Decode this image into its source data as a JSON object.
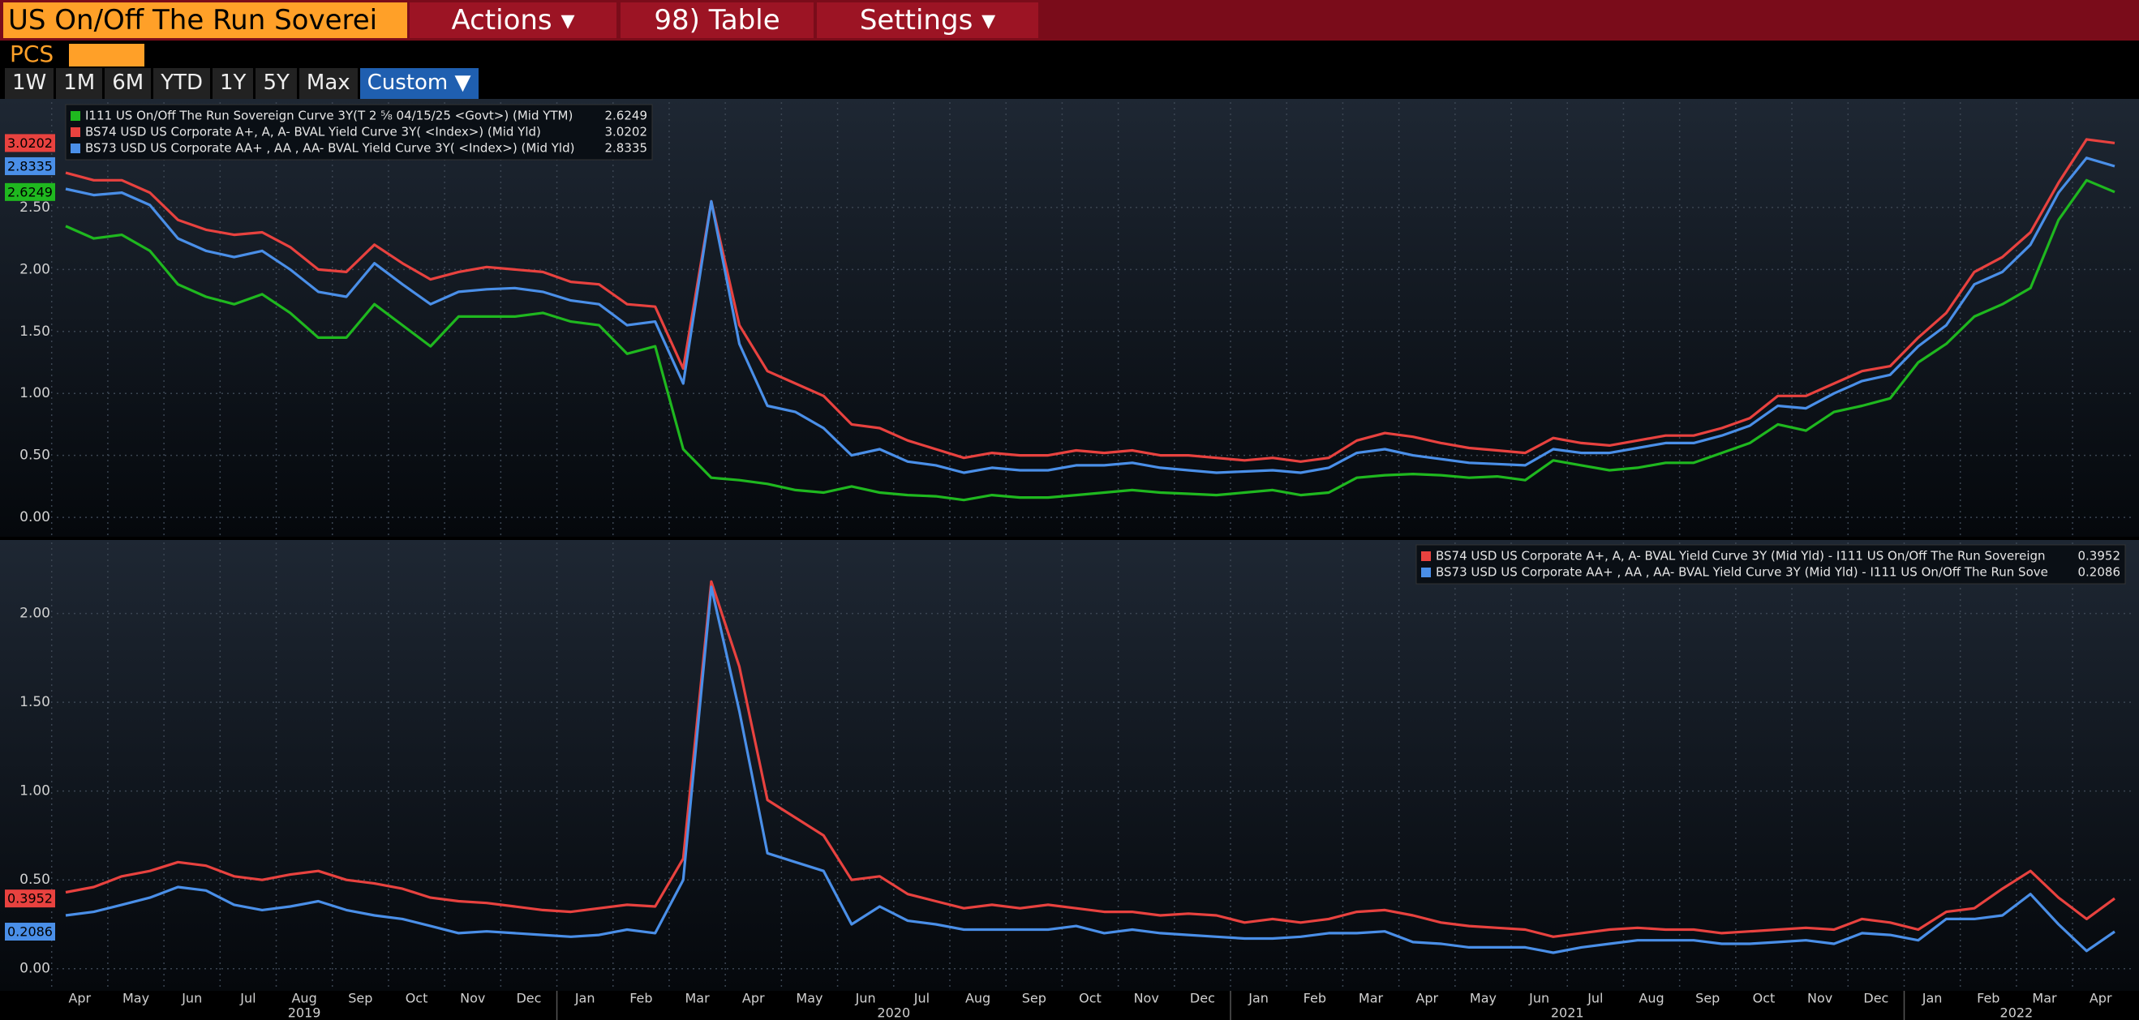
{
  "toolbar": {
    "security": "US On/Off The Run Soverei",
    "menus": [
      "Actions ▾",
      "98) Table",
      "Settings ▾"
    ],
    "pcs": "PCS",
    "ranges": [
      "1W",
      "1M",
      "6M",
      "YTD",
      "1Y",
      "5Y",
      "Max"
    ],
    "active_range": "Custom ▼"
  },
  "chart_data": [
    {
      "type": "line",
      "ylim": [
        -0.15,
        3.35
      ],
      "yticks": [
        {
          "value": 0,
          "label": "0.00"
        },
        {
          "value": 0.5,
          "label": "0.50"
        },
        {
          "value": 1,
          "label": "1.00"
        },
        {
          "value": 1.5,
          "label": "1.50"
        },
        {
          "value": 2,
          "label": "2.00"
        },
        {
          "value": 2.5,
          "label": "2.50"
        }
      ],
      "grid": true,
      "legend": "upper left",
      "series": [
        {
          "name": "I111 US On/Off The Run Sovereign Curve 3Y(T 2 ⅝ 04/15/25 <Govt>) (Mid YTM)",
          "color": "#1fb81f",
          "values": [
            2.35,
            2.25,
            2.28,
            2.15,
            1.88,
            1.78,
            1.72,
            1.8,
            1.65,
            1.45,
            1.45,
            1.72,
            1.55,
            1.38,
            1.62,
            1.62,
            1.62,
            1.65,
            1.58,
            1.55,
            1.32,
            1.38,
            0.55,
            0.32,
            0.3,
            0.27,
            0.22,
            0.2,
            0.25,
            0.2,
            0.18,
            0.17,
            0.14,
            0.18,
            0.16,
            0.16,
            0.18,
            0.2,
            0.22,
            0.2,
            0.19,
            0.18,
            0.2,
            0.22,
            0.18,
            0.2,
            0.32,
            0.34,
            0.35,
            0.34,
            0.32,
            0.33,
            0.3,
            0.46,
            0.42,
            0.38,
            0.4,
            0.44,
            0.44,
            0.52,
            0.6,
            0.75,
            0.7,
            0.85,
            0.9,
            0.96,
            1.25,
            1.4,
            1.62,
            1.72,
            1.85,
            2.4,
            2.72,
            2.6249
          ]
        },
        {
          "name": "BS74 USD US Corporate A+, A, A- BVAL Yield Curve 3Y( <Index>) (Mid Yld)",
          "color": "#e8423f",
          "values": [
            2.78,
            2.72,
            2.72,
            2.62,
            2.4,
            2.32,
            2.28,
            2.3,
            2.18,
            2.0,
            1.98,
            2.2,
            2.05,
            1.92,
            1.98,
            2.02,
            2.0,
            1.98,
            1.9,
            1.88,
            1.72,
            1.7,
            1.2,
            2.55,
            1.55,
            1.18,
            1.08,
            0.98,
            0.75,
            0.72,
            0.62,
            0.55,
            0.48,
            0.52,
            0.5,
            0.5,
            0.54,
            0.52,
            0.54,
            0.5,
            0.5,
            0.48,
            0.46,
            0.48,
            0.45,
            0.48,
            0.62,
            0.68,
            0.65,
            0.6,
            0.56,
            0.54,
            0.52,
            0.64,
            0.6,
            0.58,
            0.62,
            0.66,
            0.66,
            0.72,
            0.8,
            0.98,
            0.98,
            1.08,
            1.18,
            1.22,
            1.45,
            1.65,
            1.98,
            2.1,
            2.3,
            2.7,
            3.05,
            3.0202
          ]
        },
        {
          "name": "BS73 USD US Corporate AA+ , AA , AA- BVAL Yield Curve 3Y( <Index>) (Mid Yld)",
          "color": "#4a8fe8",
          "values": [
            2.65,
            2.6,
            2.62,
            2.52,
            2.25,
            2.15,
            2.1,
            2.15,
            2.0,
            1.82,
            1.78,
            2.05,
            1.88,
            1.72,
            1.82,
            1.84,
            1.85,
            1.82,
            1.75,
            1.72,
            1.55,
            1.58,
            1.08,
            2.55,
            1.4,
            0.9,
            0.85,
            0.72,
            0.5,
            0.55,
            0.45,
            0.42,
            0.36,
            0.4,
            0.38,
            0.38,
            0.42,
            0.42,
            0.44,
            0.4,
            0.38,
            0.36,
            0.37,
            0.38,
            0.36,
            0.4,
            0.52,
            0.55,
            0.5,
            0.47,
            0.44,
            0.43,
            0.42,
            0.55,
            0.52,
            0.52,
            0.56,
            0.6,
            0.6,
            0.66,
            0.74,
            0.9,
            0.88,
            1.0,
            1.1,
            1.15,
            1.38,
            1.55,
            1.88,
            1.98,
            2.2,
            2.62,
            2.9,
            2.8335
          ]
        }
      ]
    },
    {
      "type": "line",
      "ylim": [
        -0.12,
        2.4
      ],
      "yticks": [
        {
          "value": 0,
          "label": "0.00"
        },
        {
          "value": 0.5,
          "label": "0.50"
        },
        {
          "value": 1,
          "label": "1.00"
        },
        {
          "value": 1.5,
          "label": "1.50"
        },
        {
          "value": 2,
          "label": "2.00"
        }
      ],
      "grid": true,
      "legend": "upper right",
      "categories": [
        "Apr",
        null,
        "May",
        null,
        "Jun",
        null,
        "Jul",
        null,
        "Aug",
        null,
        "Sep",
        null,
        "Oct",
        null,
        "Nov",
        null,
        "Dec",
        null,
        "Jan",
        null,
        "Feb",
        null,
        "Mar",
        null,
        "Apr",
        null,
        "May",
        null,
        "Jun",
        null,
        "Jul",
        null,
        "Aug",
        null,
        "Sep",
        null,
        "Oct",
        null,
        "Nov",
        null,
        "Dec",
        null,
        "Jan",
        null,
        "Feb",
        null,
        "Mar",
        null,
        "Apr",
        null,
        "May",
        null,
        "Jun",
        null,
        "Jul",
        null,
        "Aug",
        null,
        "Sep",
        null,
        "Oct",
        null,
        "Nov",
        null,
        "Dec",
        null,
        "Jan",
        null,
        "Feb",
        null,
        "Mar",
        null,
        "Apr",
        null
      ],
      "years": [
        {
          "label": "2019",
          "first": 0
        },
        {
          "label": "2020",
          "first": 18
        },
        {
          "label": "2021",
          "first": 42
        },
        {
          "label": "2022",
          "first": 66
        }
      ],
      "series": [
        {
          "name": "BS74 USD US Corporate A+, A, A- BVAL Yield Curve 3Y (Mid Yld) - I111 US On/Off The Run Sovereign",
          "color": "#e8423f",
          "values": [
            0.43,
            0.46,
            0.52,
            0.55,
            0.6,
            0.58,
            0.52,
            0.5,
            0.53,
            0.55,
            0.5,
            0.48,
            0.45,
            0.4,
            0.38,
            0.37,
            0.35,
            0.33,
            0.32,
            0.34,
            0.36,
            0.35,
            0.62,
            2.18,
            1.7,
            0.95,
            0.85,
            0.75,
            0.5,
            0.52,
            0.42,
            0.38,
            0.34,
            0.36,
            0.34,
            0.36,
            0.34,
            0.32,
            0.32,
            0.3,
            0.31,
            0.3,
            0.26,
            0.28,
            0.26,
            0.28,
            0.32,
            0.33,
            0.3,
            0.26,
            0.24,
            0.23,
            0.22,
            0.18,
            0.2,
            0.22,
            0.23,
            0.22,
            0.22,
            0.2,
            0.21,
            0.22,
            0.23,
            0.22,
            0.28,
            0.26,
            0.22,
            0.32,
            0.34,
            0.45,
            0.55,
            0.4,
            0.28,
            0.3952
          ]
        },
        {
          "name": "BS73 USD US Corporate AA+ , AA , AA- BVAL Yield Curve 3Y (Mid Yld) - I111 US On/Off The Run Sove",
          "color": "#4a8fe8",
          "values": [
            0.3,
            0.32,
            0.36,
            0.4,
            0.46,
            0.44,
            0.36,
            0.33,
            0.35,
            0.38,
            0.33,
            0.3,
            0.28,
            0.24,
            0.2,
            0.21,
            0.2,
            0.19,
            0.18,
            0.19,
            0.22,
            0.2,
            0.5,
            2.15,
            1.45,
            0.65,
            0.6,
            0.55,
            0.25,
            0.35,
            0.27,
            0.25,
            0.22,
            0.22,
            0.22,
            0.22,
            0.24,
            0.2,
            0.22,
            0.2,
            0.19,
            0.18,
            0.17,
            0.17,
            0.18,
            0.2,
            0.2,
            0.21,
            0.15,
            0.14,
            0.12,
            0.12,
            0.12,
            0.09,
            0.12,
            0.14,
            0.16,
            0.16,
            0.16,
            0.14,
            0.14,
            0.15,
            0.16,
            0.14,
            0.2,
            0.19,
            0.16,
            0.28,
            0.28,
            0.3,
            0.42,
            0.25,
            0.1,
            0.2086
          ]
        }
      ]
    }
  ]
}
